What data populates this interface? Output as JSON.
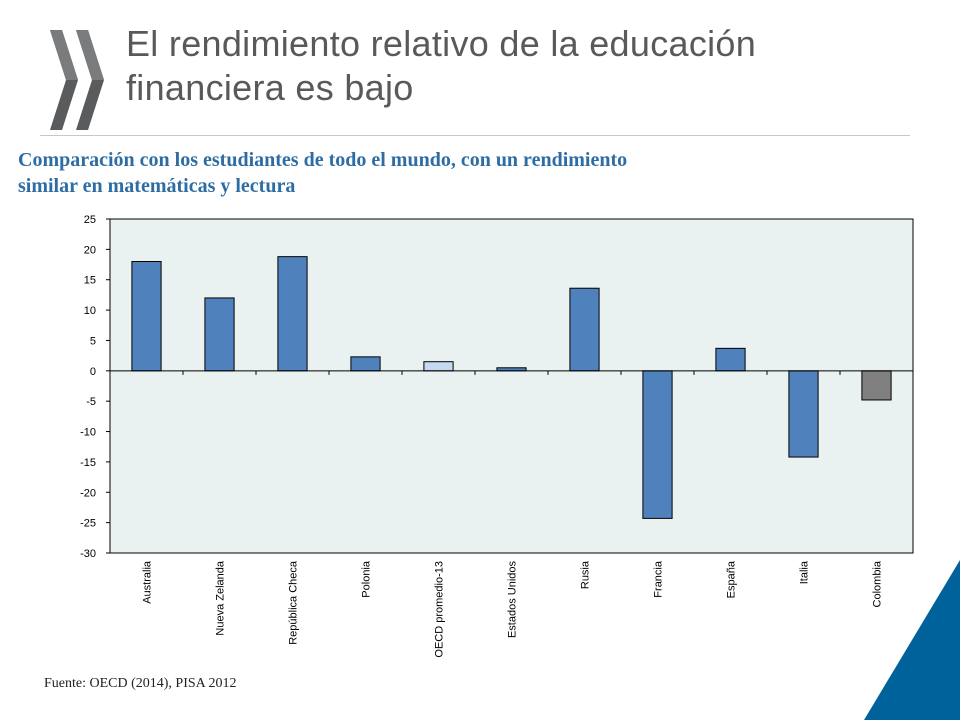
{
  "header": {
    "title_line1": "El rendimiento relativo de la educación",
    "title_line2": "financiera es bajo",
    "logo_icon": "oecd-chevrons-icon"
  },
  "subtitle": {
    "line1": "Comparación con los estudiantes de todo el mundo, con un rendimiento",
    "line2": "similar en matemáticas y lectura"
  },
  "source": "Fuente: OECD (2014), PISA 2012",
  "colors": {
    "title": "#58595b",
    "subtitle": "#2e6da4",
    "plot_bg": "#eaf2f1",
    "bar_default": "#4f81bd",
    "bar_oecd": "#c5d9f1",
    "bar_colombia": "#808080",
    "corner_accent": "#00629b"
  },
  "chart_data": {
    "type": "bar",
    "categories": [
      "Australia",
      "Nueva Zelanda",
      "República Checa",
      "Polonia",
      "OECD promedio-13",
      "Estados Unidos",
      "Rusia",
      "Francia",
      "España",
      "Italia",
      "Colombia"
    ],
    "values": [
      18,
      12,
      18.8,
      2.3,
      1.5,
      0.5,
      13.6,
      -24.3,
      3.7,
      -14.2,
      -4.8
    ],
    "bar_colors": [
      "#4f81bd",
      "#4f81bd",
      "#4f81bd",
      "#4f81bd",
      "#c5d9f1",
      "#4f81bd",
      "#4f81bd",
      "#4f81bd",
      "#4f81bd",
      "#4f81bd",
      "#808080"
    ],
    "ylim": [
      -30,
      25
    ],
    "yticks": [
      25,
      20,
      15,
      10,
      5,
      0,
      -5,
      -10,
      -15,
      -20,
      -25,
      -30
    ],
    "grid": false,
    "legend": "none"
  }
}
